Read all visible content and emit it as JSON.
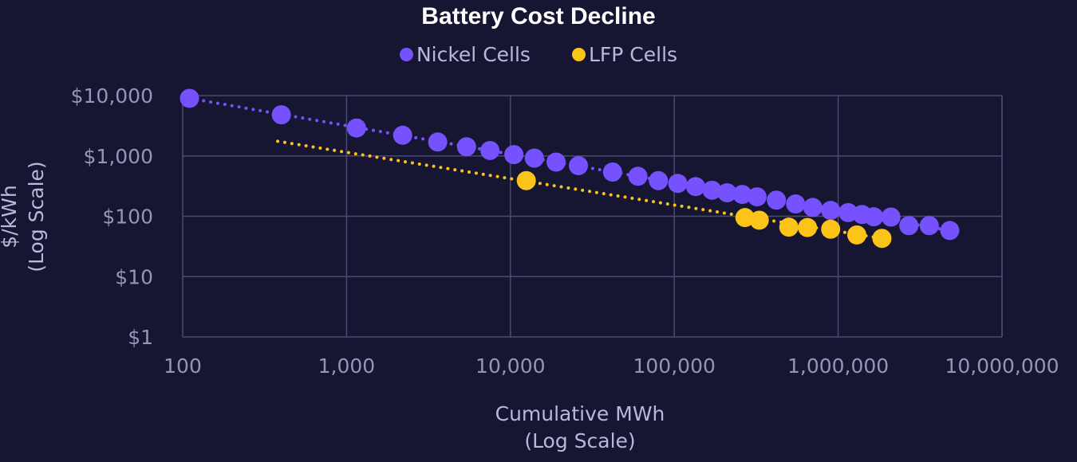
{
  "chart_data": {
    "type": "scatter",
    "title": "Battery Cost Decline",
    "xlabel": [
      "Cumulative MWh",
      "(Log Scale)"
    ],
    "ylabel": [
      "$/kWh",
      "(Log Scale)"
    ],
    "xscale": "log",
    "yscale": "log",
    "xlim": [
      100,
      10000000
    ],
    "ylim": [
      1,
      10000
    ],
    "x_ticks": [
      100,
      1000,
      10000,
      100000,
      1000000,
      10000000
    ],
    "x_tick_labels": [
      "100",
      "1,000",
      "10,000",
      "100,000",
      "1,000,000",
      "10,000,000"
    ],
    "y_ticks": [
      1,
      10,
      100,
      1000,
      10000
    ],
    "y_tick_labels": [
      "$1",
      "$10",
      "$100",
      "$1,000",
      "$10,000"
    ],
    "grid": true,
    "legend_position": "top-center",
    "series": [
      {
        "name": "Nickel Cells",
        "color": "#7652ff",
        "trendline": "dotted",
        "points": [
          {
            "x": 110,
            "y": 9000
          },
          {
            "x": 400,
            "y": 4800
          },
          {
            "x": 1150,
            "y": 2900
          },
          {
            "x": 2200,
            "y": 2200
          },
          {
            "x": 3600,
            "y": 1700
          },
          {
            "x": 5400,
            "y": 1420
          },
          {
            "x": 7500,
            "y": 1230
          },
          {
            "x": 10500,
            "y": 1050
          },
          {
            "x": 14000,
            "y": 920
          },
          {
            "x": 19000,
            "y": 790
          },
          {
            "x": 26000,
            "y": 690
          },
          {
            "x": 42000,
            "y": 540
          },
          {
            "x": 60000,
            "y": 460
          },
          {
            "x": 80000,
            "y": 390
          },
          {
            "x": 105000,
            "y": 350
          },
          {
            "x": 135000,
            "y": 310
          },
          {
            "x": 170000,
            "y": 270
          },
          {
            "x": 210000,
            "y": 245
          },
          {
            "x": 260000,
            "y": 230
          },
          {
            "x": 320000,
            "y": 210
          },
          {
            "x": 420000,
            "y": 185
          },
          {
            "x": 550000,
            "y": 160
          },
          {
            "x": 700000,
            "y": 140
          },
          {
            "x": 900000,
            "y": 125
          },
          {
            "x": 1150000,
            "y": 115
          },
          {
            "x": 1400000,
            "y": 107
          },
          {
            "x": 1650000,
            "y": 98
          },
          {
            "x": 2100000,
            "y": 97
          },
          {
            "x": 2700000,
            "y": 70
          },
          {
            "x": 3600000,
            "y": 70
          },
          {
            "x": 4800000,
            "y": 58
          }
        ]
      },
      {
        "name": "LFP Cells",
        "color": "#fcc419",
        "trendline": "dotted",
        "trend_start": {
          "x": 380,
          "y": 1750
        },
        "points": [
          {
            "x": 12500,
            "y": 390
          },
          {
            "x": 270000,
            "y": 95
          },
          {
            "x": 330000,
            "y": 86
          },
          {
            "x": 500000,
            "y": 66
          },
          {
            "x": 650000,
            "y": 65
          },
          {
            "x": 900000,
            "y": 61
          },
          {
            "x": 1300000,
            "y": 49
          },
          {
            "x": 1850000,
            "y": 43
          }
        ]
      }
    ]
  }
}
